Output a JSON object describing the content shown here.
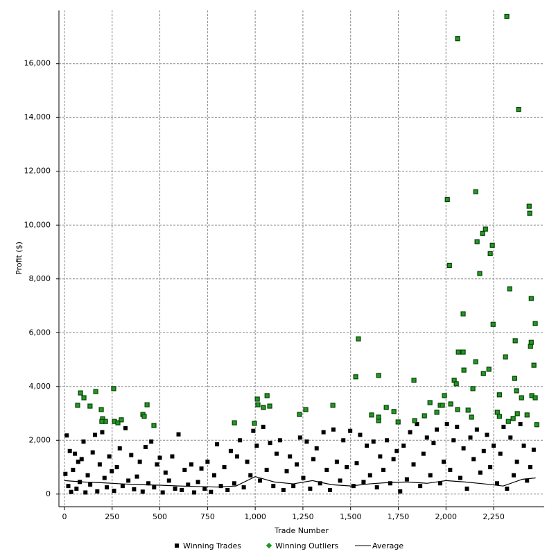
{
  "chart_data": {
    "type": "scatter",
    "x_label": "Trade Number",
    "y_label": "Profit ($)",
    "xlim": [
      -29,
      2515
    ],
    "ylim": [
      -470,
      17980
    ],
    "xticks": [
      0,
      250,
      500,
      750,
      {
        "value": 1000,
        "label": "1,000"
      },
      {
        "value": 1250,
        "label": "1,250"
      },
      {
        "value": 1500,
        "label": "1,500"
      },
      {
        "value": 1750,
        "label": "1,750"
      },
      {
        "value": 2000,
        "label": "2,000"
      },
      {
        "value": 2250,
        "label": "2,250"
      }
    ],
    "yticks": [
      0,
      {
        "value": 2000,
        "label": "2,000"
      },
      {
        "value": 4000,
        "label": "4,000"
      },
      {
        "value": 6000,
        "label": "6,000"
      },
      {
        "value": 8000,
        "label": "8,000"
      },
      {
        "value": 10000,
        "label": "10,000"
      },
      {
        "value": 12000,
        "label": "12,000"
      },
      {
        "value": 14000,
        "label": "14,000"
      },
      {
        "value": 16000,
        "label": "16,000"
      }
    ],
    "grid": true,
    "legend": "bottom",
    "series": [
      {
        "name": "Winning Trades",
        "color": "#000000",
        "marker": "square",
        "x": [
          5,
          12,
          20,
          28,
          35,
          45,
          55,
          63,
          72,
          80,
          90,
          100,
          110,
          122,
          135,
          148,
          160,
          172,
          185,
          198,
          210,
          222,
          235,
          248,
          260,
          275,
          290,
          305,
          320,
          335,
          350,
          365,
          380,
          395,
          410,
          425,
          440,
          455,
          470,
          485,
          500,
          515,
          530,
          548,
          565,
          580,
          598,
          615,
          630,
          648,
          665,
          680,
          700,
          718,
          735,
          750,
          768,
          785,
          800,
          820,
          838,
          855,
          872,
          890,
          905,
          920,
          940,
          958,
          975,
          990,
          1008,
          1025,
          1042,
          1060,
          1078,
          1095,
          1112,
          1130,
          1148,
          1165,
          1182,
          1200,
          1218,
          1235,
          1252,
          1270,
          1288,
          1305,
          1322,
          1340,
          1358,
          1375,
          1392,
          1410,
          1428,
          1445,
          1462,
          1480,
          1498,
          1515,
          1532,
          1550,
          1568,
          1585,
          1602,
          1620,
          1638,
          1655,
          1672,
          1690,
          1708,
          1725,
          1742,
          1760,
          1778,
          1795,
          1812,
          1830,
          1848,
          1865,
          1882,
          1900,
          1918,
          1935,
          1952,
          1970,
          1988,
          2005,
          2022,
          2040,
          2058,
          2075,
          2092,
          2110,
          2128,
          2145,
          2162,
          2180,
          2198,
          2215,
          2232,
          2250,
          2268,
          2285,
          2302,
          2320,
          2338,
          2355,
          2372,
          2390,
          2408,
          2425,
          2442,
          2460
        ],
        "values": [
          750,
          2180,
          300,
          1600,
          80,
          900,
          1500,
          200,
          1200,
          450,
          1300,
          1950,
          60,
          700,
          350,
          1550,
          2200,
          100,
          1100,
          2300,
          600,
          250,
          1400,
          850,
          120,
          1000,
          1700,
          300,
          2450,
          500,
          1450,
          180,
          650,
          1200,
          90,
          1750,
          400,
          1950,
          250,
          1100,
          1350,
          60,
          800,
          500,
          1400,
          200,
          2220,
          150,
          900,
          350,
          1100,
          60,
          450,
          950,
          200,
          1200,
          80,
          700,
          1850,
          300,
          1000,
          150,
          1600,
          400,
          1400,
          2000,
          250,
          1200,
          700,
          2350,
          1800,
          500,
          2500,
          900,
          1900,
          300,
          1500,
          2000,
          150,
          850,
          1400,
          300,
          1100,
          2100,
          600,
          1950,
          200,
          1300,
          1700,
          400,
          2300,
          900,
          150,
          2400,
          1200,
          500,
          2000,
          1000,
          2350,
          300,
          1150,
          2200,
          450,
          1800,
          700,
          1950,
          250,
          1400,
          900,
          2000,
          400,
          1300,
          1600,
          100,
          1800,
          550,
          2300,
          1100,
          2600,
          300,
          1500,
          2100,
          700,
          1900,
          2400,
          400,
          1200,
          2600,
          900,
          2000,
          2500,
          600,
          1700,
          200,
          2100,
          1300,
          2400,
          800,
          1600,
          2200,
          1000,
          1800,
          400,
          1500,
          2500,
          200,
          2100,
          700,
          1200,
          2600,
          1800,
          500,
          1000,
          1650
        ]
      },
      {
        "name": "Winning Outliers",
        "color": "#1f9a1f",
        "marker": "diamond",
        "x": [
          69,
          84,
          102,
          134,
          164,
          193,
          200,
          215,
          196,
          258,
          262,
          280,
          298,
          411,
          418,
          433,
          469,
          891,
          996,
          1011,
          1014,
          1043,
          1062,
          1076,
          1232,
          1265,
          1407,
          1527,
          1541,
          1610,
          1647,
          1647,
          1647,
          1687,
          1727,
          1749,
          1832,
          1836,
          1887,
          1916,
          1952,
          1970,
          1981,
          1992,
          2007,
          2018,
          2025,
          2043,
          2054,
          2061,
          2061,
          2065,
          2090,
          2090,
          2094,
          2116,
          2134,
          2141,
          2156,
          2156,
          2163,
          2177,
          2192,
          2207,
          2196,
          2225,
          2232,
          2243,
          2247,
          2269,
          2280,
          2280,
          2312,
          2319,
          2327,
          2334,
          2352,
          2360,
          2363,
          2370,
          2374,
          2381,
          2396,
          2425,
          2436,
          2439,
          2443,
          2447,
          2450,
          2447,
          2461,
          2468,
          2468,
          2476
        ],
        "values": [
          3300,
          3760,
          3580,
          3270,
          3810,
          3140,
          2800,
          2700,
          2700,
          3920,
          2700,
          2650,
          2760,
          2960,
          2890,
          3320,
          2550,
          2650,
          2630,
          3530,
          3320,
          3220,
          3660,
          3270,
          2960,
          3140,
          3300,
          4360,
          5770,
          2940,
          2730,
          2860,
          4410,
          3220,
          3070,
          2680,
          4230,
          2730,
          2910,
          3400,
          3040,
          3300,
          3300,
          3660,
          10950,
          8500,
          3350,
          4230,
          4100,
          16930,
          3140,
          5280,
          5280,
          6700,
          4610,
          3120,
          2860,
          3920,
          11240,
          4920,
          9380,
          8200,
          9690,
          9850,
          4480,
          4640,
          8940,
          9250,
          6310,
          3040,
          2890,
          3690,
          5100,
          17760,
          2700,
          7630,
          2810,
          4300,
          5700,
          3840,
          2990,
          14300,
          3580,
          2940,
          10700,
          10440,
          5490,
          5640,
          3660,
          7270,
          4790,
          6340,
          3580,
          2580
        ]
      },
      {
        "name": "Average",
        "color": "#000000",
        "marker": "line",
        "x": [
          0,
          100,
          200,
          300,
          400,
          500,
          600,
          700,
          800,
          900,
          1000,
          1100,
          1200,
          1300,
          1400,
          1500,
          1600,
          1700,
          1800,
          1900,
          2000,
          2100,
          2200,
          2300,
          2400,
          2470
        ],
        "values": [
          500,
          450,
          420,
          380,
          350,
          330,
          300,
          280,
          260,
          300,
          650,
          450,
          380,
          500,
          350,
          300,
          380,
          430,
          450,
          400,
          500,
          450,
          380,
          300,
          550,
          600
        ]
      }
    ]
  }
}
